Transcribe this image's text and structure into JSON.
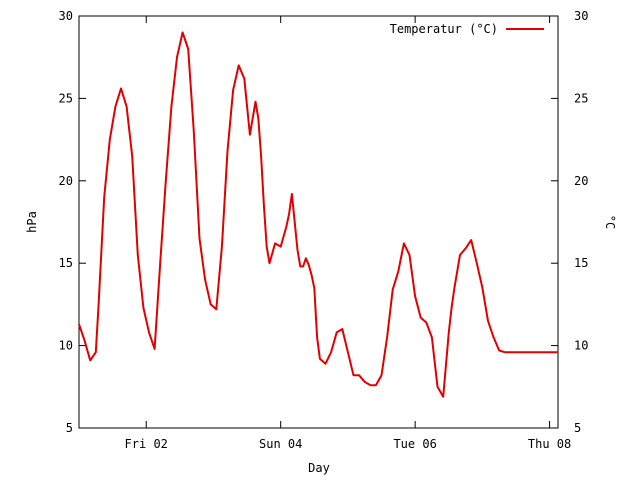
{
  "chart_data": {
    "type": "line",
    "title": "",
    "xlabel": "Day",
    "ylabel_left": "hPa",
    "ylabel_right": "°C",
    "xlim": [
      "2012-11-01T00:00",
      "2012-11-08T03:00"
    ],
    "ylim_left": [
      5,
      30
    ],
    "ylim_right": [
      5,
      30
    ],
    "x_ticks": [
      {
        "at": "2012-11-02T00:00",
        "label": "Fri 02"
      },
      {
        "at": "2012-11-04T00:00",
        "label": "Sun 04"
      },
      {
        "at": "2012-11-06T00:00",
        "label": "Tue 06"
      },
      {
        "at": "2012-11-08T00:00",
        "label": "Thu 08"
      }
    ],
    "y_ticks_left": [
      "5",
      "10",
      "15",
      "20",
      "25",
      "30"
    ],
    "y_ticks_right": [
      "5",
      "10",
      "15",
      "20",
      "25",
      "30"
    ],
    "grid": false,
    "legend_position": "top-right",
    "series": [
      {
        "name": "Temperatur (°C)",
        "color": "#e00000",
        "x": [
          "2012-11-01T00:00",
          "2012-11-01T02:00",
          "2012-11-01T04:00",
          "2012-11-01T06:00",
          "2012-11-01T07:00",
          "2012-11-01T09:00",
          "2012-11-01T11:00",
          "2012-11-01T13:00",
          "2012-11-01T15:00",
          "2012-11-01T17:00",
          "2012-11-01T19:00",
          "2012-11-01T21:00",
          "2012-11-01T23:00",
          "2012-11-02T01:00",
          "2012-11-02T03:00",
          "2012-11-02T05:00",
          "2012-11-02T07:00",
          "2012-11-02T09:00",
          "2012-11-02T11:00",
          "2012-11-02T13:00",
          "2012-11-02T15:00",
          "2012-11-02T17:00",
          "2012-11-02T19:00",
          "2012-11-02T21:00",
          "2012-11-02T23:00",
          "2012-11-03T01:00",
          "2012-11-03T03:00",
          "2012-11-03T05:00",
          "2012-11-03T07:00",
          "2012-11-03T09:00",
          "2012-11-03T11:00",
          "2012-11-03T13:00",
          "2012-11-03T15:00",
          "2012-11-03T16:00",
          "2012-11-03T17:00",
          "2012-11-03T18:00",
          "2012-11-03T19:00",
          "2012-11-03T20:00",
          "2012-11-03T22:00",
          "2012-11-04T00:00",
          "2012-11-04T02:00",
          "2012-11-04T03:00",
          "2012-11-04T04:00",
          "2012-11-04T06:00",
          "2012-11-04T07:00",
          "2012-11-04T08:00",
          "2012-11-04T09:00",
          "2012-11-04T10:00",
          "2012-11-04T11:00",
          "2012-11-04T12:00",
          "2012-11-04T13:00",
          "2012-11-04T14:00",
          "2012-11-04T16:00",
          "2012-11-04T18:00",
          "2012-11-04T20:00",
          "2012-11-04T22:00",
          "2012-11-05T00:00",
          "2012-11-05T02:00",
          "2012-11-05T04:00",
          "2012-11-05T06:00",
          "2012-11-05T08:00",
          "2012-11-05T10:00",
          "2012-11-05T12:00",
          "2012-11-05T14:00",
          "2012-11-05T16:00",
          "2012-11-05T18:00",
          "2012-11-05T20:00",
          "2012-11-05T22:00",
          "2012-11-06T00:00",
          "2012-11-06T02:00",
          "2012-11-06T04:00",
          "2012-11-06T06:00",
          "2012-11-06T08:00",
          "2012-11-06T10:00",
          "2012-11-06T12:00",
          "2012-11-06T13:00",
          "2012-11-06T14:00",
          "2012-11-06T16:00",
          "2012-11-06T18:00",
          "2012-11-06T20:00",
          "2012-11-06T22:00",
          "2012-11-07T00:00",
          "2012-11-07T02:00",
          "2012-11-07T04:00",
          "2012-11-07T06:00",
          "2012-11-07T08:00",
          "2012-11-07T10:00",
          "2012-11-07T12:00",
          "2012-11-07T14:00",
          "2012-11-07T16:00",
          "2012-11-07T18:00",
          "2012-11-07T20:00",
          "2012-11-07T22:00",
          "2012-11-08T00:00",
          "2012-11-08T02:00",
          "2012-11-08T03:00"
        ],
        "y": [
          11.3,
          10.3,
          9.1,
          9.6,
          12.5,
          19.0,
          22.5,
          24.5,
          25.6,
          24.5,
          21.5,
          15.5,
          12.3,
          10.8,
          9.8,
          15.0,
          20.0,
          24.5,
          27.5,
          29.0,
          28.0,
          23.0,
          16.5,
          14.0,
          12.5,
          12.2,
          16.0,
          21.8,
          25.5,
          27.0,
          26.2,
          22.8,
          24.8,
          23.8,
          21.5,
          18.5,
          16.0,
          15.0,
          16.2,
          16.0,
          17.2,
          18.0,
          19.2,
          15.8,
          14.8,
          14.8,
          15.3,
          14.9,
          14.3,
          13.5,
          10.5,
          9.2,
          8.9,
          9.6,
          10.8,
          11.0,
          9.6,
          8.2,
          8.2,
          7.8,
          7.6,
          7.6,
          8.2,
          10.5,
          13.4,
          14.5,
          16.2,
          15.5,
          13.0,
          11.7,
          11.4,
          10.5,
          7.5,
          6.9,
          10.8,
          12.3,
          13.5,
          15.5,
          15.9,
          16.4,
          15.0,
          13.5,
          11.5,
          10.5,
          9.7,
          9.6,
          9.6,
          9.6,
          9.6,
          9.6,
          9.6,
          9.6,
          9.6,
          9.6,
          9.6,
          9.6
        ]
      }
    ]
  }
}
